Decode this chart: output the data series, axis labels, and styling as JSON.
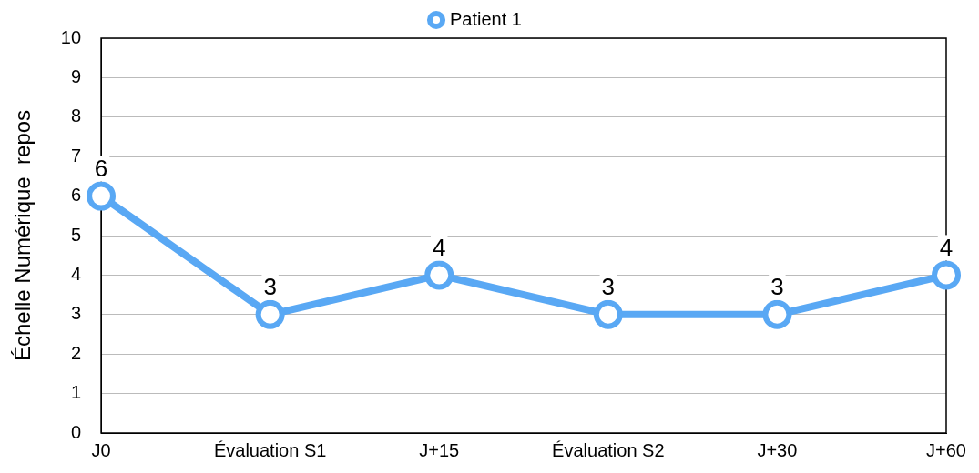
{
  "chart_data": {
    "type": "line",
    "ylabel": "Échelle Numérique  repos",
    "categories": [
      "J0",
      "Évaluation S1",
      "J+15",
      "Évaluation S2",
      "J+30",
      "J+60"
    ],
    "series": [
      {
        "name": "Patient 1",
        "color": "#59a8f4",
        "values": [
          6,
          3,
          4,
          3,
          3,
          4
        ]
      }
    ],
    "ylim": [
      0,
      10
    ],
    "yticks": [
      0,
      1,
      2,
      3,
      4,
      5,
      6,
      7,
      8,
      9,
      10
    ],
    "grid": "y",
    "legend": "top",
    "marker": "circle",
    "line_style": "solid",
    "data_labels": true
  }
}
